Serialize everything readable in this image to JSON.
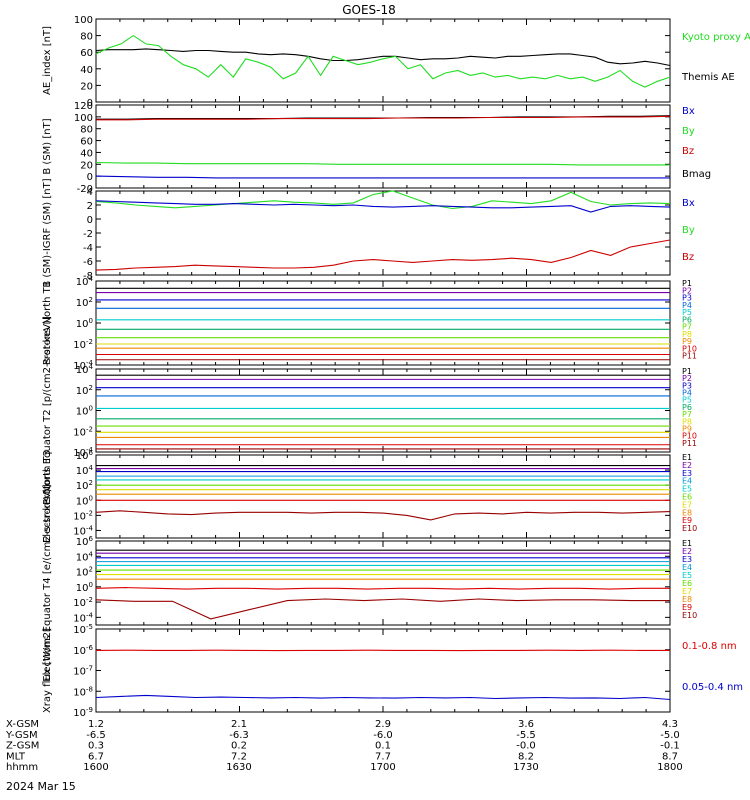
{
  "title": "GOES-18",
  "date_label": "2024 Mar 15",
  "colors": {
    "black": "#000000",
    "green": "#22dd22",
    "blue": "#0000cc",
    "red": "#cc0000",
    "darkred": "#990000"
  },
  "chart_data": [
    {
      "type": "line",
      "ylabel": "AE_index [nT]",
      "yticks": [
        "0",
        "20",
        "40",
        "60",
        "80",
        "100"
      ],
      "legend": [
        {
          "text": "Kyoto proxy AE",
          "color": "#22dd22"
        },
        {
          "text": "Themis AE",
          "color": "#000000"
        }
      ],
      "series": [
        {
          "name": "Themis AE",
          "color": "#000000",
          "values": [
            62,
            63,
            63,
            63,
            64,
            63,
            62,
            61,
            62,
            62,
            61,
            60,
            60,
            58,
            57,
            58,
            57,
            55,
            52,
            50,
            50,
            51,
            53,
            55,
            55,
            53,
            51,
            52,
            52,
            53,
            55,
            54,
            53,
            55,
            55,
            56,
            57,
            58,
            58,
            56,
            54,
            48,
            46,
            47,
            49,
            47,
            44
          ]
        },
        {
          "name": "Kyoto proxy AE",
          "color": "#22dd22",
          "values": [
            58,
            65,
            70,
            80,
            70,
            68,
            55,
            45,
            40,
            30,
            45,
            30,
            52,
            48,
            42,
            28,
            35,
            55,
            32,
            55,
            50,
            45,
            48,
            52,
            55,
            40,
            45,
            28,
            35,
            38,
            32,
            35,
            30,
            32,
            28,
            30,
            28,
            32,
            28,
            30,
            25,
            30,
            38,
            25,
            18,
            25,
            30
          ]
        }
      ]
    },
    {
      "type": "line",
      "ylabel": "B (SM) [nT]",
      "yticks": [
        "-20",
        "0",
        "20",
        "40",
        "60",
        "80",
        "100",
        "120"
      ],
      "legend": [
        {
          "text": "Bx",
          "color": "#0000cc"
        },
        {
          "text": "By",
          "color": "#22dd22"
        },
        {
          "text": "Bz",
          "color": "#cc0000"
        },
        {
          "text": "Bmag",
          "color": "#000000"
        }
      ],
      "series": [
        {
          "name": "Bmag",
          "color": "#000000",
          "values": [
            96,
            96,
            97,
            97,
            97,
            97,
            97,
            98,
            98,
            98,
            98,
            99,
            99,
            99,
            100,
            100,
            100,
            101,
            101,
            102
          ]
        },
        {
          "name": "Bz",
          "color": "#cc0000",
          "values": [
            95,
            95,
            96,
            96,
            96,
            96,
            97,
            97,
            97,
            97,
            98,
            98,
            98,
            99,
            99,
            99,
            100,
            100,
            100,
            101
          ]
        },
        {
          "name": "By",
          "color": "#22dd22",
          "values": [
            23,
            22,
            22,
            21,
            21,
            21,
            21,
            21,
            20,
            20,
            20,
            20,
            20,
            20,
            20,
            20,
            19,
            19,
            19,
            19
          ]
        },
        {
          "name": "Bx",
          "color": "#0000cc",
          "values": [
            0,
            -1,
            -2,
            -2,
            -3,
            -3,
            -3,
            -3,
            -3,
            -3,
            -3,
            -3,
            -3,
            -3,
            -3,
            -3,
            -3,
            -3,
            -3,
            -3
          ]
        }
      ]
    },
    {
      "type": "line",
      "ylabel": "B (SM)-IGRF (SM) [nT]",
      "yticks": [
        "-8",
        "-6",
        "-4",
        "-2",
        "0",
        "2",
        "4"
      ],
      "legend": [
        {
          "text": "Bx",
          "color": "#0000cc"
        },
        {
          "text": "By",
          "color": "#22dd22"
        },
        {
          "text": "Bz",
          "color": "#cc0000"
        }
      ],
      "series": [
        {
          "name": "By",
          "color": "#22dd22",
          "values": [
            2.5,
            2.3,
            2.0,
            1.8,
            1.6,
            1.8,
            2.0,
            2.2,
            2.4,
            2.6,
            2.4,
            2.3,
            2.1,
            2.3,
            3.5,
            4.0,
            3.0,
            2.0,
            1.5,
            1.8,
            2.6,
            2.4,
            2.2,
            2.6,
            3.8,
            2.5,
            2.0,
            2.2,
            2.3,
            2.2
          ]
        },
        {
          "name": "Bx",
          "color": "#0000cc",
          "values": [
            2.6,
            2.5,
            2.4,
            2.3,
            2.2,
            2.1,
            2.1,
            2.2,
            2.1,
            2.0,
            2.1,
            2.0,
            1.9,
            2.0,
            1.8,
            1.7,
            1.8,
            1.9,
            1.8,
            1.7,
            1.6,
            1.6,
            1.7,
            1.8,
            1.9,
            1.0,
            1.8,
            1.9,
            1.8,
            1.7
          ]
        },
        {
          "name": "Bz",
          "color": "#cc0000",
          "values": [
            -7.3,
            -7.2,
            -7.0,
            -6.9,
            -6.8,
            -6.6,
            -6.7,
            -6.8,
            -6.9,
            -7.0,
            -7.0,
            -6.9,
            -6.6,
            -6.0,
            -5.8,
            -6.0,
            -6.2,
            -6.0,
            -5.8,
            -5.9,
            -5.8,
            -5.6,
            -5.8,
            -6.2,
            -5.5,
            -4.5,
            -5.2,
            -4.0,
            -3.5,
            -3.0
          ]
        }
      ]
    },
    {
      "type": "line",
      "log": true,
      "ylabel": "Protons North T1",
      "yticks": [
        "10-4",
        "10-2",
        "100",
        "102",
        "104"
      ],
      "legend": [
        {
          "text": "P1",
          "color": "#000000"
        },
        {
          "text": "P2",
          "color": "#7700aa"
        },
        {
          "text": "P3",
          "color": "#0000cc"
        },
        {
          "text": "P4",
          "color": "#0066dd"
        },
        {
          "text": "P5",
          "color": "#00cccc"
        },
        {
          "text": "P6",
          "color": "#00aa66"
        },
        {
          "text": "P7",
          "color": "#66dd00"
        },
        {
          "text": "P8",
          "color": "#dddd00"
        },
        {
          "text": "P9",
          "color": "#ee8800"
        },
        {
          "text": "P10",
          "color": "#dd0000"
        },
        {
          "text": "P11",
          "color": "#990000"
        }
      ],
      "series": [
        {
          "name": "P1",
          "color": "#000000",
          "values": [
            3.3
          ]
        },
        {
          "name": "P2",
          "color": "#7700aa",
          "values": [
            2.9
          ]
        },
        {
          "name": "P3",
          "color": "#0000cc",
          "values": [
            2.2
          ]
        },
        {
          "name": "P4",
          "color": "#0066dd",
          "values": [
            1.4
          ]
        },
        {
          "name": "P5",
          "color": "#00cccc",
          "values": [
            0.3
          ]
        },
        {
          "name": "P6",
          "color": "#00aa66",
          "values": [
            -0.6
          ]
        },
        {
          "name": "P7",
          "color": "#66dd00",
          "values": [
            -1.4
          ]
        },
        {
          "name": "P8",
          "color": "#dddd00",
          "values": [
            -2.0
          ]
        },
        {
          "name": "P9",
          "color": "#ee8800",
          "values": [
            -2.4
          ]
        },
        {
          "name": "P10",
          "color": "#dd0000",
          "values": [
            -3.0
          ]
        },
        {
          "name": "P11",
          "color": "#990000",
          "values": [
            -3.5
          ]
        }
      ]
    },
    {
      "type": "line",
      "log": true,
      "ylabel": "Protons Equator T2 [p/(cm2-s-sr-keV)]",
      "yticks": [
        "10-4",
        "10-2",
        "100",
        "102",
        "104"
      ],
      "legend": [
        {
          "text": "P1",
          "color": "#000000"
        },
        {
          "text": "P2",
          "color": "#7700aa"
        },
        {
          "text": "P3",
          "color": "#0000cc"
        },
        {
          "text": "P4",
          "color": "#0066dd"
        },
        {
          "text": "P5",
          "color": "#00cccc"
        },
        {
          "text": "P6",
          "color": "#00aa66"
        },
        {
          "text": "P7",
          "color": "#66dd00"
        },
        {
          "text": "P8",
          "color": "#dddd00"
        },
        {
          "text": "P9",
          "color": "#ee8800"
        },
        {
          "text": "P10",
          "color": "#dd0000"
        },
        {
          "text": "P11",
          "color": "#990000"
        }
      ],
      "series": [
        {
          "name": "P1",
          "color": "#000000",
          "values": [
            3.4
          ]
        },
        {
          "name": "P2",
          "color": "#7700aa",
          "values": [
            3.0
          ]
        },
        {
          "name": "P3",
          "color": "#0000cc",
          "values": [
            2.2
          ]
        },
        {
          "name": "P4",
          "color": "#0066dd",
          "values": [
            1.4
          ]
        },
        {
          "name": "P5",
          "color": "#00cccc",
          "values": [
            0.2
          ]
        },
        {
          "name": "P6",
          "color": "#00aa66",
          "values": [
            -0.8
          ]
        },
        {
          "name": "P7",
          "color": "#66dd00",
          "values": [
            -1.5
          ]
        },
        {
          "name": "P8",
          "color": "#dddd00",
          "values": [
            -2.1
          ]
        },
        {
          "name": "P9",
          "color": "#ee8800",
          "values": [
            -2.6
          ]
        },
        {
          "name": "P10",
          "color": "#dd0000",
          "values": [
            -3.3
          ]
        },
        {
          "name": "P11",
          "color": "#990000",
          "values": [
            -3.7
          ]
        }
      ]
    },
    {
      "type": "line",
      "log": true,
      "ylabel": "Electrons North T3",
      "yticks": [
        "10-4",
        "10-2",
        "100",
        "102",
        "104",
        "106"
      ],
      "legend": [
        {
          "text": "E1",
          "color": "#000000"
        },
        {
          "text": "E2",
          "color": "#7700aa"
        },
        {
          "text": "E3",
          "color": "#0000cc"
        },
        {
          "text": "E4",
          "color": "#0099dd"
        },
        {
          "text": "E5",
          "color": "#00cccc"
        },
        {
          "text": "E6",
          "color": "#66dd00"
        },
        {
          "text": "E7",
          "color": "#dddd00"
        },
        {
          "text": "E8",
          "color": "#ee8800"
        },
        {
          "text": "E9",
          "color": "#dd0000"
        },
        {
          "text": "E10",
          "color": "#990000"
        }
      ],
      "series": [
        {
          "name": "E1",
          "color": "#000000",
          "values": [
            4.6
          ]
        },
        {
          "name": "E2",
          "color": "#7700aa",
          "values": [
            4.2
          ]
        },
        {
          "name": "E3",
          "color": "#0000cc",
          "values": [
            3.8
          ]
        },
        {
          "name": "E4",
          "color": "#0099dd",
          "values": [
            3.2
          ]
        },
        {
          "name": "E5",
          "color": "#00cccc",
          "values": [
            2.7
          ]
        },
        {
          "name": "E6",
          "color": "#66dd00",
          "values": [
            2.0
          ]
        },
        {
          "name": "E7",
          "color": "#dddd00",
          "values": [
            1.4
          ]
        },
        {
          "name": "E8",
          "color": "#ee8800",
          "values": [
            0.8
          ]
        },
        {
          "name": "E9",
          "color": "#dd0000",
          "values": [
            0.0
          ]
        },
        {
          "name": "E10",
          "color": "#990000",
          "values": [
            -1.6,
            -1.4,
            -1.6,
            -1.8,
            -1.9,
            -1.7,
            -1.6,
            -1.6,
            -1.6,
            -1.7,
            -1.6,
            -1.6,
            -1.7,
            -2.0,
            -2.6,
            -1.8,
            -1.7,
            -1.8,
            -1.6,
            -1.7,
            -1.6,
            -1.6,
            -1.7,
            -1.6,
            -1.5
          ]
        }
      ]
    },
    {
      "type": "line",
      "log": true,
      "ylabel": "Electrons Equator T4 [e/(cm2-s-sr-keV)]",
      "yticks": [
        "10-4",
        "10-2",
        "100",
        "102",
        "104",
        "106"
      ],
      "legend": [
        {
          "text": "E1",
          "color": "#000000"
        },
        {
          "text": "E2",
          "color": "#7700aa"
        },
        {
          "text": "E3",
          "color": "#0000cc"
        },
        {
          "text": "E4",
          "color": "#0099dd"
        },
        {
          "text": "E5",
          "color": "#00cccc"
        },
        {
          "text": "E6",
          "color": "#66dd00"
        },
        {
          "text": "E7",
          "color": "#dddd00"
        },
        {
          "text": "E8",
          "color": "#ee8800"
        },
        {
          "text": "E9",
          "color": "#dd0000"
        },
        {
          "text": "E10",
          "color": "#990000"
        }
      ],
      "series": [
        {
          "name": "E1",
          "color": "#000000",
          "values": [
            4.8
          ]
        },
        {
          "name": "E2",
          "color": "#7700aa",
          "values": [
            4.4
          ]
        },
        {
          "name": "E3",
          "color": "#0000cc",
          "values": [
            3.8
          ]
        },
        {
          "name": "E4",
          "color": "#0099dd",
          "values": [
            3.3
          ]
        },
        {
          "name": "E5",
          "color": "#00cccc",
          "values": [
            2.8
          ]
        },
        {
          "name": "E6",
          "color": "#66dd00",
          "values": [
            2.2
          ]
        },
        {
          "name": "E7",
          "color": "#dddd00",
          "values": [
            1.6
          ]
        },
        {
          "name": "E8",
          "color": "#ee8800",
          "values": [
            1.0
          ]
        },
        {
          "name": "E9",
          "color": "#dd0000",
          "values": [
            -0.2,
            -0.1,
            -0.2,
            -0.3,
            -0.2,
            -0.2,
            -0.3,
            -0.2,
            -0.2,
            -0.3,
            -0.2,
            -0.2,
            -0.3,
            -0.2,
            -0.3,
            -0.2,
            -0.2,
            -0.3,
            -0.2,
            -0.2
          ]
        },
        {
          "name": "E10",
          "color": "#990000",
          "values": [
            -1.7,
            -1.9,
            -1.9,
            -4.2,
            -3.0,
            -1.8,
            -1.6,
            -1.8,
            -1.6,
            -1.9,
            -1.6,
            -1.8,
            -1.7,
            -1.7,
            -1.8,
            -1.8
          ]
        }
      ]
    },
    {
      "type": "line",
      "log": true,
      "ylabel": "Xray flux [W/m2]",
      "yticks": [
        "10-9",
        "10-8",
        "10-7",
        "10-6",
        "10-5"
      ],
      "legend": [
        {
          "text": "0.1-0.8 nm",
          "color": "#dd0000"
        },
        {
          "text": "0.05-0.4 nm",
          "color": "#0000cc"
        }
      ],
      "series": [
        {
          "name": "0.1-0.8 nm",
          "color": "#dd0000",
          "values": [
            -6.03,
            -6.02,
            -6.03,
            -6.03,
            -6.02,
            -6.03,
            -6.04,
            -6.03,
            -6.03,
            -6.02,
            -6.03,
            -6.03,
            -6.04,
            -6.03,
            -6.03,
            -6.02,
            -6.03,
            -6.02,
            -6.03,
            -6.03
          ]
        },
        {
          "name": "0.05-0.4 nm",
          "color": "#0000cc",
          "values": [
            -8.3,
            -8.25,
            -8.2,
            -8.25,
            -8.3,
            -8.28,
            -8.3,
            -8.32,
            -8.3,
            -8.33,
            -8.3,
            -8.32,
            -8.33,
            -8.3,
            -8.32,
            -8.3,
            -8.35,
            -8.32,
            -8.3,
            -8.33,
            -8.32,
            -8.35,
            -8.3,
            -8.4
          ]
        }
      ]
    }
  ],
  "x_axis": {
    "rows": [
      {
        "label": "X-GSM",
        "values": [
          "1.2",
          "2.1",
          "2.9",
          "3.6",
          "4.3"
        ]
      },
      {
        "label": "Y-GSM",
        "values": [
          "-6.5",
          "-6.3",
          "-6.0",
          "-5.5",
          "-5.0"
        ]
      },
      {
        "label": "Z-GSM",
        "values": [
          "0.3",
          "0.2",
          "0.1",
          "-0.0",
          "-0.1"
        ]
      },
      {
        "label": "MLT",
        "values": [
          "6.7",
          "7.2",
          "7.7",
          "8.2",
          "8.7"
        ]
      },
      {
        "label": "hhmm",
        "values": [
          "1600",
          "1630",
          "1700",
          "1730",
          "1800"
        ]
      }
    ]
  }
}
